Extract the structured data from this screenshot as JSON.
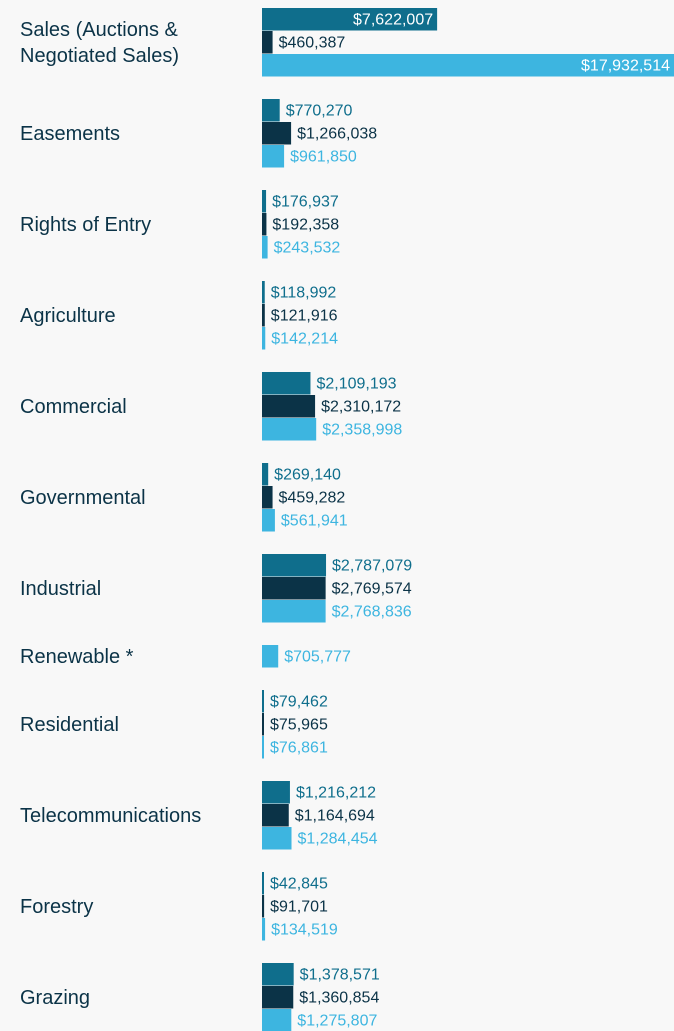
{
  "chart_data": {
    "type": "bar",
    "orientation": "horizontal",
    "categories": [
      "Sales (Auctions & Negotiated Sales)",
      "Easements",
      "Rights of Entry",
      "Agriculture",
      "Commercial",
      "Governmental",
      "Industrial",
      "Renewable *",
      "Residential",
      "Telecommunications",
      "Forestry",
      "Grazing"
    ],
    "series": [
      {
        "color": "#0f6e8c",
        "values": [
          7622007,
          770270,
          176937,
          118992,
          2109193,
          269140,
          2787079,
          null,
          79462,
          1216212,
          42845,
          1378571
        ],
        "value_labels": [
          "$7,622,007",
          "$770,270",
          "$176,937",
          "$118,992",
          "$2,109,193",
          "$269,140",
          "$2,787,079",
          null,
          "$79,462",
          "$1,216,212",
          "$42,845",
          "$1,378,571"
        ]
      },
      {
        "color": "#0b3347",
        "values": [
          460387,
          1266038,
          192358,
          121916,
          2310172,
          459282,
          2769574,
          null,
          75965,
          1164694,
          91701,
          1360854
        ],
        "value_labels": [
          "$460,387",
          "$1,266,038",
          "$192,358",
          "$121,916",
          "$2,310,172",
          "$459,282",
          "$2,769,574",
          null,
          "$75,965",
          "$1,164,694",
          "$91,701",
          "$1,360,854"
        ]
      },
      {
        "color": "#3db5e0",
        "values": [
          17932514,
          961850,
          243532,
          142214,
          2358998,
          561941,
          2768836,
          705777,
          76861,
          1284454,
          134519,
          1275807
        ],
        "value_labels": [
          "$17,932,514",
          "$961,850",
          "$243,532",
          "$142,214",
          "$2,358,998",
          "$561,941",
          "$2,768,836",
          "$705,777",
          "$76,861",
          "$1,284,454",
          "$134,519",
          "$1,275,807"
        ]
      }
    ]
  }
}
